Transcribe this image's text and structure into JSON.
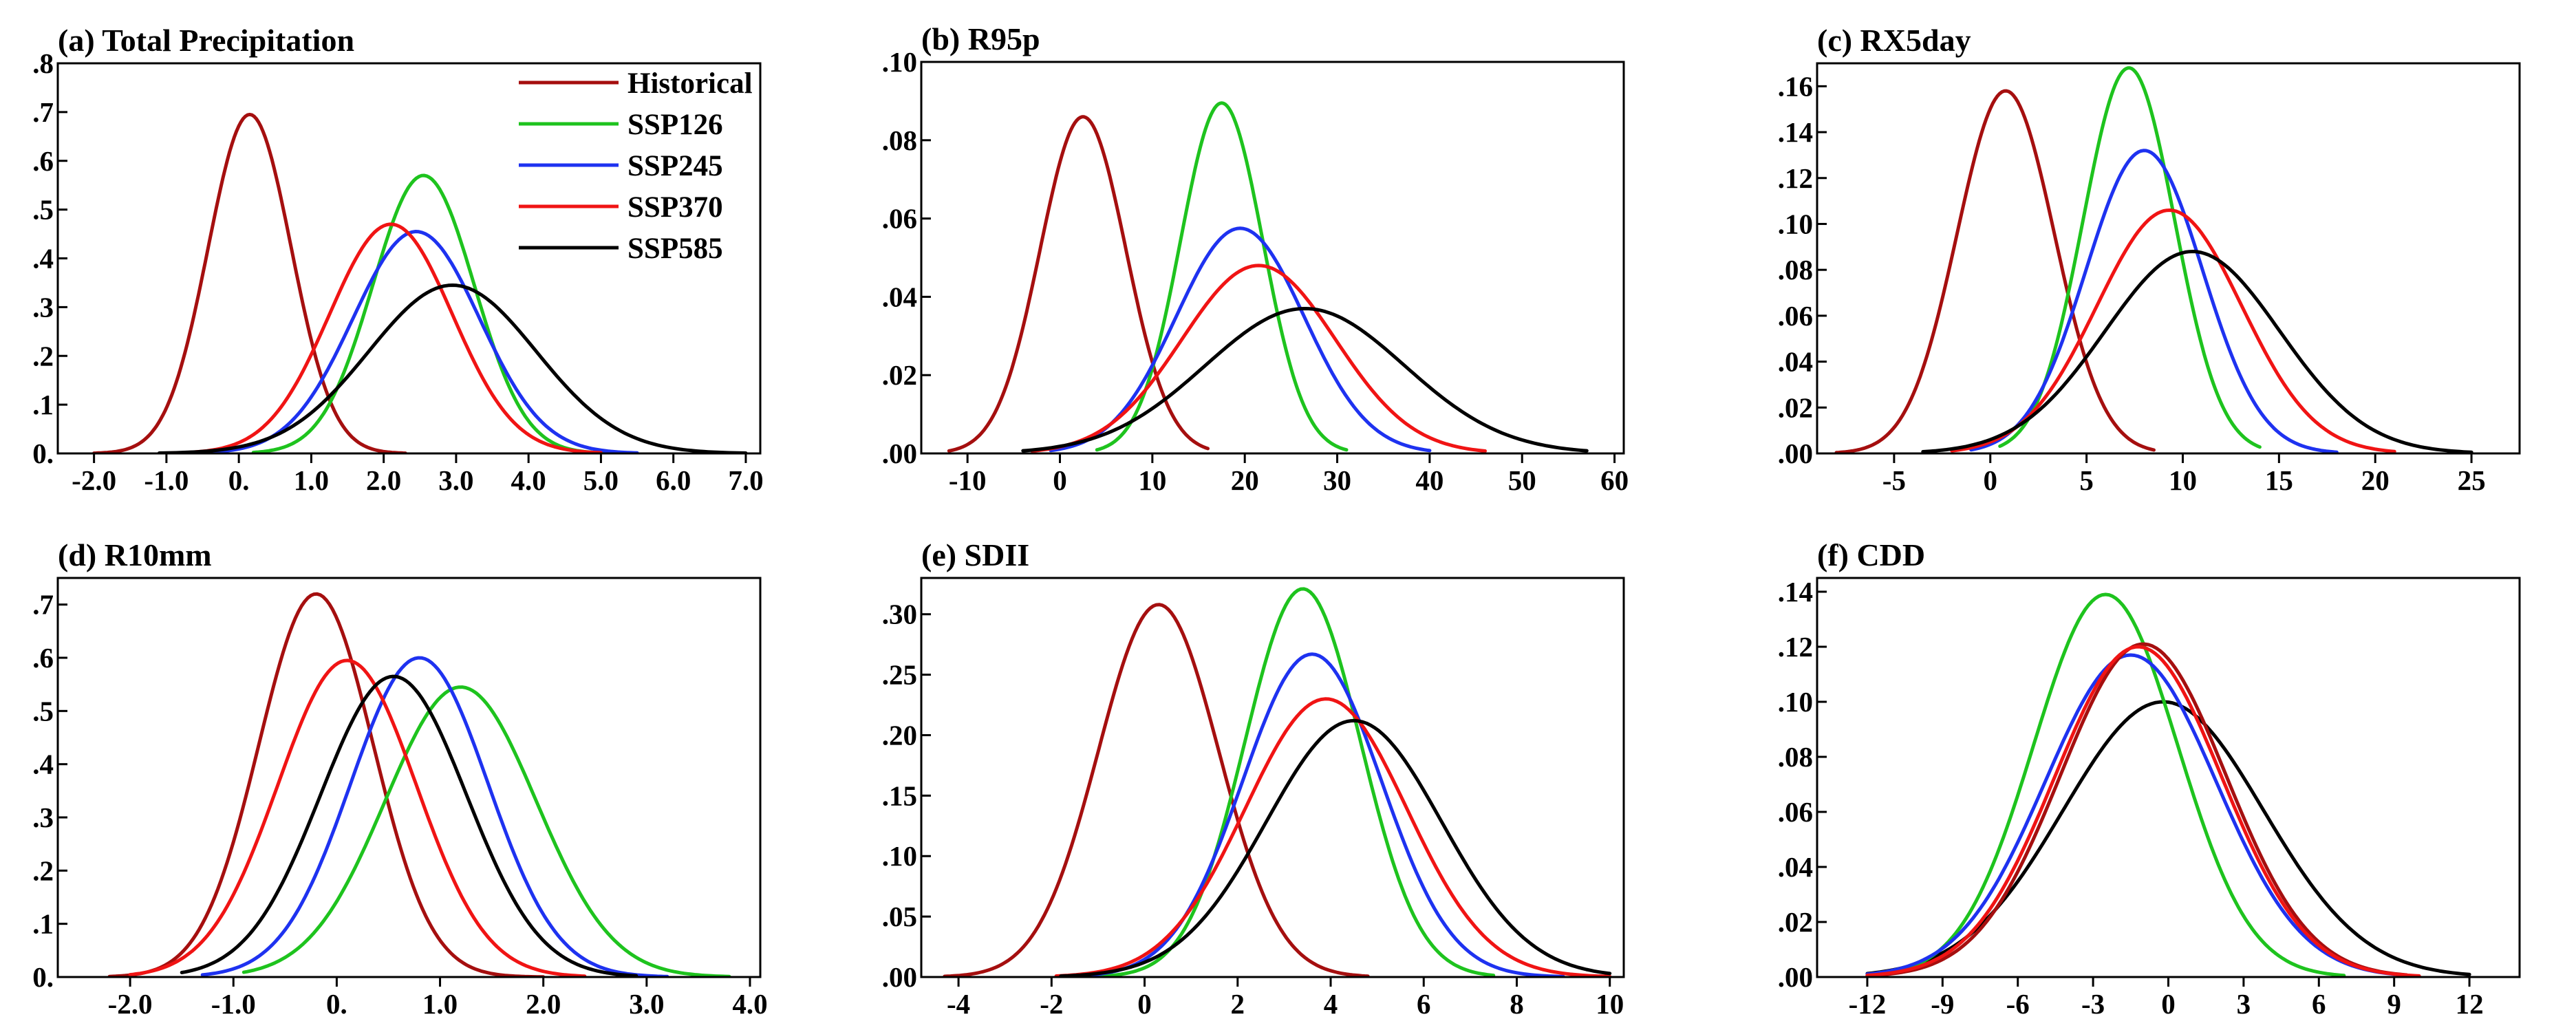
{
  "series_styles": [
    {
      "name": "Historical",
      "color": "#a50f0f"
    },
    {
      "name": "SSP126",
      "color": "#1ec31e"
    },
    {
      "name": "SSP245",
      "color": "#1e32f0"
    },
    {
      "name": "SSP370",
      "color": "#f01414"
    },
    {
      "name": "SSP585",
      "color": "#000000"
    }
  ],
  "chart_data": [
    {
      "type": "line",
      "title": "(a) Total Precipitation",
      "xlim": [
        -2.5,
        7.2
      ],
      "ylim": [
        0,
        0.8
      ],
      "xticks": [
        -2,
        -1,
        0,
        1,
        2,
        3,
        4,
        5,
        6,
        7
      ],
      "xtick_labels": [
        "-2.0",
        "-1.0",
        "0.",
        "1.0",
        "2.0",
        "3.0",
        "4.0",
        "5.0",
        "6.0",
        "7.0"
      ],
      "yticks": [
        0,
        0.1,
        0.2,
        0.3,
        0.4,
        0.5,
        0.6,
        0.7,
        0.8
      ],
      "ytick_labels": [
        "0.",
        ".1",
        ".2",
        ".3",
        ".4",
        ".5",
        ".6",
        ".7",
        ".8"
      ],
      "legend": "top-right",
      "series": [
        {
          "name": "Historical",
          "mean": 0.15,
          "peak": 0.695,
          "xmin": -2.0,
          "xmax": 2.3
        },
        {
          "name": "SSP126",
          "mean": 2.55,
          "peak": 0.57,
          "xmin": 0.2,
          "xmax": 5.2
        },
        {
          "name": "SSP245",
          "mean": 2.45,
          "peak": 0.455,
          "xmin": -0.8,
          "xmax": 5.5
        },
        {
          "name": "SSP370",
          "mean": 2.1,
          "peak": 0.47,
          "xmin": -1.0,
          "xmax": 5.0
        },
        {
          "name": "SSP585",
          "mean": 2.95,
          "peak": 0.345,
          "xmin": -1.1,
          "xmax": 7.0
        }
      ]
    },
    {
      "type": "line",
      "title": "(b) R95p",
      "xlim": [
        -15,
        61
      ],
      "ylim": [
        0,
        0.1
      ],
      "xticks": [
        -10,
        0,
        10,
        20,
        30,
        40,
        50,
        60
      ],
      "xtick_labels": [
        "-10",
        "0",
        "10",
        "20",
        "30",
        "40",
        "50",
        "60"
      ],
      "yticks": [
        0,
        0.02,
        0.04,
        0.06,
        0.08,
        0.1
      ],
      "ytick_labels": [
        ".00",
        ".02",
        ".04",
        ".06",
        ".08",
        ".10"
      ],
      "series": [
        {
          "name": "Historical",
          "mean": 2.5,
          "peak": 0.086,
          "xmin": -12,
          "xmax": 16
        },
        {
          "name": "SSP126",
          "mean": 17.5,
          "peak": 0.0895,
          "xmin": 4,
          "xmax": 31
        },
        {
          "name": "SSP245",
          "mean": 19.5,
          "peak": 0.0575,
          "xmin": -1,
          "xmax": 40
        },
        {
          "name": "SSP370",
          "mean": 21.5,
          "peak": 0.048,
          "xmin": -3,
          "xmax": 46
        },
        {
          "name": "SSP585",
          "mean": 26.5,
          "peak": 0.037,
          "xmin": -4,
          "xmax": 57
        }
      ]
    },
    {
      "type": "line",
      "title": "(c) RX5day",
      "xlim": [
        -9,
        27.5
      ],
      "ylim": [
        0,
        0.17
      ],
      "xticks": [
        -5,
        0,
        5,
        10,
        15,
        20,
        25
      ],
      "xtick_labels": [
        "-5",
        "0",
        "5",
        "10",
        "15",
        "20",
        "25"
      ],
      "yticks": [
        0,
        0.02,
        0.04,
        0.06,
        0.08,
        0.1,
        0.12,
        0.14,
        0.16
      ],
      "ytick_labels": [
        ".00",
        ".02",
        ".04",
        ".06",
        ".08",
        ".10",
        ".12",
        ".14",
        ".16"
      ],
      "series": [
        {
          "name": "Historical",
          "mean": 0.8,
          "peak": 0.158,
          "xmin": -8,
          "xmax": 8.5
        },
        {
          "name": "SSP126",
          "mean": 7.2,
          "peak": 0.168,
          "xmin": 0.5,
          "xmax": 14
        },
        {
          "name": "SSP245",
          "mean": 8.0,
          "peak": 0.132,
          "xmin": -1,
          "xmax": 18
        },
        {
          "name": "SSP370",
          "mean": 9.3,
          "peak": 0.106,
          "xmin": -2,
          "xmax": 21
        },
        {
          "name": "SSP585",
          "mean": 10.5,
          "peak": 0.088,
          "xmin": -3.5,
          "xmax": 25
        }
      ]
    },
    {
      "type": "line",
      "title": "(d) R10mm",
      "xlim": [
        -2.7,
        4.1
      ],
      "ylim": [
        0,
        0.75
      ],
      "xticks": [
        -2,
        -1,
        0,
        1,
        2,
        3,
        4
      ],
      "xtick_labels": [
        "-2.0",
        "-1.0",
        "0.",
        "1.0",
        "2.0",
        "3.0",
        "4.0"
      ],
      "yticks": [
        0,
        0.1,
        0.2,
        0.3,
        0.4,
        0.5,
        0.6,
        0.7
      ],
      "ytick_labels": [
        "0.",
        ".1",
        ".2",
        ".3",
        ".4",
        ".5",
        ".6",
        ".7"
      ],
      "series": [
        {
          "name": "Historical",
          "mean": -0.2,
          "peak": 0.72,
          "xmin": -2.2,
          "xmax": 2.0
        },
        {
          "name": "SSP126",
          "mean": 1.2,
          "peak": 0.545,
          "xmin": -0.9,
          "xmax": 3.8
        },
        {
          "name": "SSP245",
          "mean": 0.8,
          "peak": 0.6,
          "xmin": -1.3,
          "xmax": 3.2
        },
        {
          "name": "SSP370",
          "mean": 0.1,
          "peak": 0.595,
          "xmin": -2.0,
          "xmax": 2.4
        },
        {
          "name": "SSP585",
          "mean": 0.55,
          "peak": 0.565,
          "xmin": -1.5,
          "xmax": 2.9
        }
      ]
    },
    {
      "type": "line",
      "title": "(e) SDII",
      "xlim": [
        -4.8,
        10.3
      ],
      "ylim": [
        0,
        0.33
      ],
      "xticks": [
        -4,
        -2,
        0,
        2,
        4,
        6,
        8,
        10
      ],
      "xtick_labels": [
        "-4",
        "-2",
        "0",
        "2",
        "4",
        "6",
        "8",
        "10"
      ],
      "yticks": [
        0,
        0.05,
        0.1,
        0.15,
        0.2,
        0.25,
        0.3
      ],
      "ytick_labels": [
        ".00",
        ".05",
        ".10",
        ".15",
        ".20",
        ".25",
        ".30"
      ],
      "series": [
        {
          "name": "Historical",
          "mean": 0.3,
          "peak": 0.308,
          "xmin": -4.3,
          "xmax": 4.8
        },
        {
          "name": "SSP126",
          "mean": 3.4,
          "peak": 0.321,
          "xmin": -1.7,
          "xmax": 7.5
        },
        {
          "name": "SSP245",
          "mean": 3.6,
          "peak": 0.267,
          "xmin": -1.8,
          "xmax": 9.0
        },
        {
          "name": "SSP370",
          "mean": 3.9,
          "peak": 0.23,
          "xmin": -1.9,
          "xmax": 10.0
        },
        {
          "name": "SSP585",
          "mean": 4.5,
          "peak": 0.212,
          "xmin": -1.8,
          "xmax": 10.0
        }
      ]
    },
    {
      "type": "line",
      "title": "(f) CDD",
      "xlim": [
        -14,
        14
      ],
      "ylim": [
        0,
        0.145
      ],
      "xticks": [
        -12,
        -9,
        -6,
        -3,
        0,
        3,
        6,
        9,
        12
      ],
      "xtick_labels": [
        "-12",
        "-9",
        "-6",
        "-3",
        "0",
        "3",
        "6",
        "9",
        "12"
      ],
      "yticks": [
        0,
        0.02,
        0.04,
        0.06,
        0.08,
        0.1,
        0.12,
        0.14
      ],
      "ytick_labels": [
        ".00",
        ".02",
        ".04",
        ".06",
        ".08",
        ".10",
        ".12",
        ".14"
      ],
      "series": [
        {
          "name": "SSP585",
          "mean": -0.2,
          "peak": 0.1,
          "xmin": -12,
          "xmax": 12
        },
        {
          "name": "SSP126",
          "mean": -2.5,
          "peak": 0.139,
          "xmin": -12,
          "xmax": 7
        },
        {
          "name": "SSP245",
          "mean": -1.5,
          "peak": 0.117,
          "xmin": -12,
          "xmax": 9
        },
        {
          "name": "Historical",
          "mean": -1.0,
          "peak": 0.121,
          "xmin": -12,
          "xmax": 9.5
        },
        {
          "name": "SSP370",
          "mean": -1.2,
          "peak": 0.12,
          "xmin": -12,
          "xmax": 10
        }
      ]
    }
  ]
}
